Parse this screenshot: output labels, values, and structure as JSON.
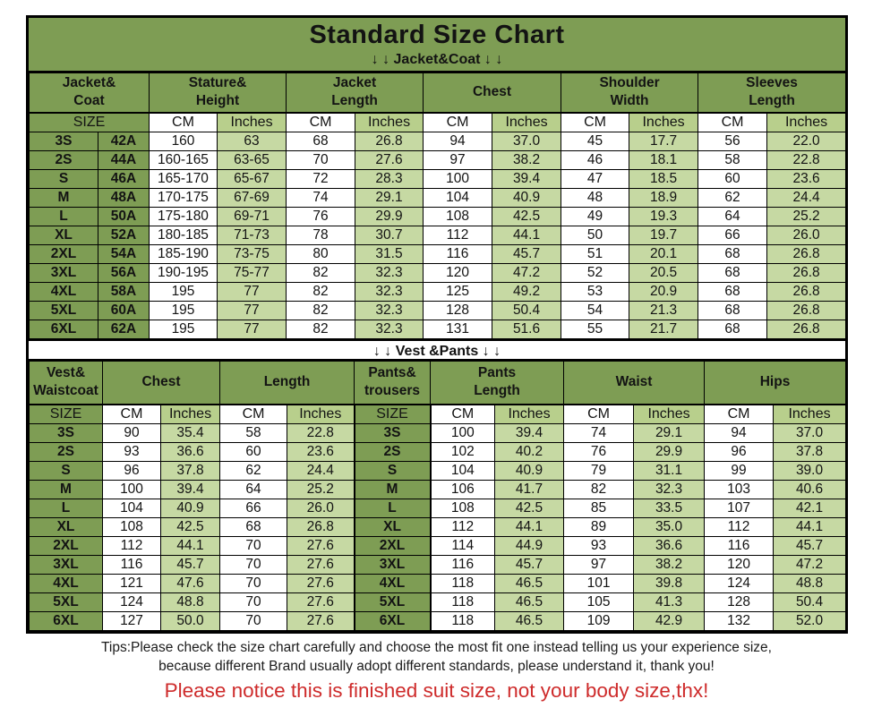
{
  "title": "Standard Size Chart",
  "colors": {
    "olive": "#7E9D54",
    "cell_green": "#C6D9A3",
    "hdr_green": "#B8CF8C",
    "notice_red": "#CE2B2B"
  },
  "chart_data": [
    {
      "type": "table",
      "section_label": "↓ ↓  Jacket&Coat ↓ ↓",
      "column_groups": [
        {
          "label": "Jacket&\nCoat",
          "span": 2
        },
        {
          "label": "Stature&\nHeight",
          "span": 2
        },
        {
          "label": "Jacket\nLength",
          "span": 2
        },
        {
          "label": "Chest",
          "span": 2
        },
        {
          "label": "Shoulder\nWidth",
          "span": 2
        },
        {
          "label": "Sleeves\nLength",
          "span": 2
        }
      ],
      "subheader": [
        {
          "label": "SIZE",
          "span": 2
        },
        {
          "label": "CM",
          "span": 1
        },
        {
          "label": "Inches",
          "span": 1
        },
        {
          "label": "CM",
          "span": 1
        },
        {
          "label": "Inches",
          "span": 1
        },
        {
          "label": "CM",
          "span": 1
        },
        {
          "label": "Inches",
          "span": 1
        },
        {
          "label": "CM",
          "span": 1
        },
        {
          "label": "Inches",
          "span": 1
        },
        {
          "label": "CM",
          "span": 1
        },
        {
          "label": "Inches",
          "span": 1
        }
      ],
      "rows": [
        [
          "3S",
          "42A",
          "160",
          "63",
          "68",
          "26.8",
          "94",
          "37.0",
          "45",
          "17.7",
          "56",
          "22.0"
        ],
        [
          "2S",
          "44A",
          "160-165",
          "63-65",
          "70",
          "27.6",
          "97",
          "38.2",
          "46",
          "18.1",
          "58",
          "22.8"
        ],
        [
          "S",
          "46A",
          "165-170",
          "65-67",
          "72",
          "28.3",
          "100",
          "39.4",
          "47",
          "18.5",
          "60",
          "23.6"
        ],
        [
          "M",
          "48A",
          "170-175",
          "67-69",
          "74",
          "29.1",
          "104",
          "40.9",
          "48",
          "18.9",
          "62",
          "24.4"
        ],
        [
          "L",
          "50A",
          "175-180",
          "69-71",
          "76",
          "29.9",
          "108",
          "42.5",
          "49",
          "19.3",
          "64",
          "25.2"
        ],
        [
          "XL",
          "52A",
          "180-185",
          "71-73",
          "78",
          "30.7",
          "112",
          "44.1",
          "50",
          "19.7",
          "66",
          "26.0"
        ],
        [
          "2XL",
          "54A",
          "185-190",
          "73-75",
          "80",
          "31.5",
          "116",
          "45.7",
          "51",
          "20.1",
          "68",
          "26.8"
        ],
        [
          "3XL",
          "56A",
          "190-195",
          "75-77",
          "82",
          "32.3",
          "120",
          "47.2",
          "52",
          "20.5",
          "68",
          "26.8"
        ],
        [
          "4XL",
          "58A",
          "195",
          "77",
          "82",
          "32.3",
          "125",
          "49.2",
          "53",
          "20.9",
          "68",
          "26.8"
        ],
        [
          "5XL",
          "60A",
          "195",
          "77",
          "82",
          "32.3",
          "128",
          "50.4",
          "54",
          "21.3",
          "68",
          "26.8"
        ],
        [
          "6XL",
          "62A",
          "195",
          "77",
          "82",
          "32.3",
          "131",
          "51.6",
          "55",
          "21.7",
          "68",
          "26.8"
        ]
      ]
    },
    {
      "type": "table",
      "section_label": "↓ ↓  Vest &Pants ↓ ↓",
      "column_groups": [
        {
          "label": "Vest&\nWaistcoat",
          "span": 1
        },
        {
          "label": "Chest",
          "span": 2
        },
        {
          "label": "Length",
          "span": 2
        },
        {
          "label": "Pants&\ntrousers",
          "span": 1
        },
        {
          "label": "Pants\nLength",
          "span": 2
        },
        {
          "label": "Waist",
          "span": 2
        },
        {
          "label": "Hips",
          "span": 2
        }
      ],
      "subheader": [
        {
          "label": "SIZE",
          "span": 1
        },
        {
          "label": "CM",
          "span": 1
        },
        {
          "label": "Inches",
          "span": 1
        },
        {
          "label": "CM",
          "span": 1
        },
        {
          "label": "Inches",
          "span": 1
        },
        {
          "label": "SIZE",
          "span": 1
        },
        {
          "label": "CM",
          "span": 1
        },
        {
          "label": "Inches",
          "span": 1
        },
        {
          "label": "CM",
          "span": 1
        },
        {
          "label": "Inches",
          "span": 1
        },
        {
          "label": "CM",
          "span": 1
        },
        {
          "label": "Inches",
          "span": 1
        }
      ],
      "rows": [
        [
          "3S",
          "90",
          "35.4",
          "58",
          "22.8",
          "3S",
          "100",
          "39.4",
          "74",
          "29.1",
          "94",
          "37.0"
        ],
        [
          "2S",
          "93",
          "36.6",
          "60",
          "23.6",
          "2S",
          "102",
          "40.2",
          "76",
          "29.9",
          "96",
          "37.8"
        ],
        [
          "S",
          "96",
          "37.8",
          "62",
          "24.4",
          "S",
          "104",
          "40.9",
          "79",
          "31.1",
          "99",
          "39.0"
        ],
        [
          "M",
          "100",
          "39.4",
          "64",
          "25.2",
          "M",
          "106",
          "41.7",
          "82",
          "32.3",
          "103",
          "40.6"
        ],
        [
          "L",
          "104",
          "40.9",
          "66",
          "26.0",
          "L",
          "108",
          "42.5",
          "85",
          "33.5",
          "107",
          "42.1"
        ],
        [
          "XL",
          "108",
          "42.5",
          "68",
          "26.8",
          "XL",
          "112",
          "44.1",
          "89",
          "35.0",
          "112",
          "44.1"
        ],
        [
          "2XL",
          "112",
          "44.1",
          "70",
          "27.6",
          "2XL",
          "114",
          "44.9",
          "93",
          "36.6",
          "116",
          "45.7"
        ],
        [
          "3XL",
          "116",
          "45.7",
          "70",
          "27.6",
          "3XL",
          "116",
          "45.7",
          "97",
          "38.2",
          "120",
          "47.2"
        ],
        [
          "4XL",
          "121",
          "47.6",
          "70",
          "27.6",
          "4XL",
          "118",
          "46.5",
          "101",
          "39.8",
          "124",
          "48.8"
        ],
        [
          "5XL",
          "124",
          "48.8",
          "70",
          "27.6",
          "5XL",
          "118",
          "46.5",
          "105",
          "41.3",
          "128",
          "50.4"
        ],
        [
          "6XL",
          "127",
          "50.0",
          "70",
          "27.6",
          "6XL",
          "118",
          "46.5",
          "109",
          "42.9",
          "132",
          "52.0"
        ]
      ]
    }
  ],
  "footer": {
    "tips_line1": "Tips:Please check the size chart carefully and choose the most fit one instead telling us your experience size,",
    "tips_line2": "because different Brand usually adopt different standards, please understand it, thank you!",
    "notice": "Please notice this is finished suit size, not your body size,thx!"
  }
}
